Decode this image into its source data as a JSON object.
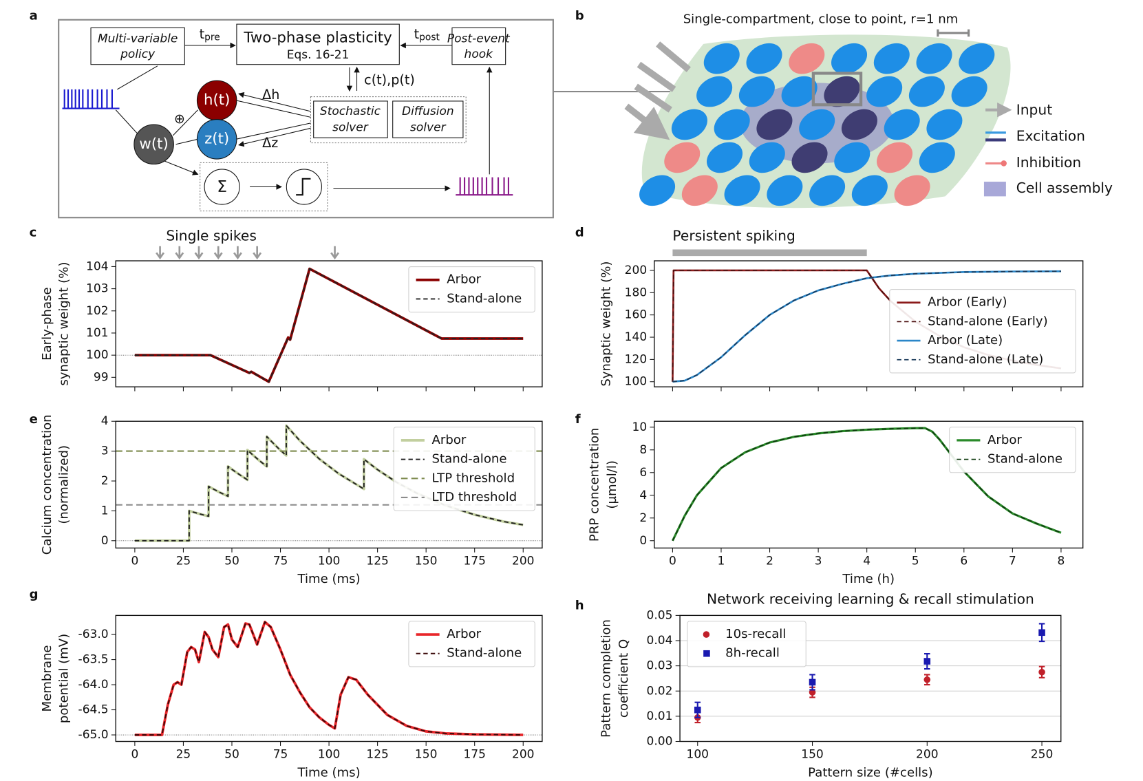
{
  "panel_labels": [
    "a",
    "b",
    "c",
    "d",
    "e",
    "f",
    "g",
    "h"
  ],
  "diagram_a": {
    "policy": [
      "Multi-variable",
      "policy"
    ],
    "t_pre": "t",
    "t_pre_sub": "pre",
    "plasticity": "Two-phase plasticity",
    "equations": "Eqs. 16-21",
    "t_post": "t",
    "t_post_sub": "post",
    "hook": [
      "Post-event",
      "hook"
    ],
    "h": "h(t)",
    "z": "z(t)",
    "w": "w(t)",
    "plus": "⊕",
    "delta_h": "Δh",
    "delta_z": "Δz",
    "cp": "c(t),p(t)",
    "stochastic": [
      "Stochastic",
      "solver"
    ],
    "diffusion": [
      "Diffusion",
      "solver"
    ],
    "sum": "Σ"
  },
  "diagram_b": {
    "title": "Single-compartment, close to point, r=1 nm",
    "legend": [
      "Input",
      "Excitation",
      "Inhibition",
      "Cell assembly"
    ]
  },
  "chart_data": [
    {
      "type": "line",
      "ylabel": [
        "Early-phase",
        "synaptic weight (%)"
      ],
      "annotation": "Single spikes",
      "spike_times": [
        13,
        23,
        33,
        43,
        53,
        63,
        103
      ],
      "xlim": [
        -9.8,
        209.8
      ],
      "ylim": [
        98.57,
        104.26
      ],
      "xticks": [
        0,
        25,
        50,
        75,
        100,
        125,
        150,
        175,
        200
      ],
      "xtick_labels": false,
      "yticks": [
        99,
        100,
        101,
        102,
        103,
        104
      ],
      "hline": 100,
      "legend": "upper right",
      "series": [
        {
          "name": "Arbor",
          "color": "#8b0000",
          "dash": "none",
          "width": 3.5,
          "x": [
            0,
            39,
            59,
            60,
            69,
            70,
            75,
            79,
            80,
            90,
            158,
            200
          ],
          "values": [
            100,
            100,
            99.2,
            99.25,
            98.8,
            99.0,
            100.0,
            100.8,
            100.7,
            103.9,
            100.75,
            100.75
          ]
        },
        {
          "name": "Stand-alone",
          "color": "#222222",
          "dash": "6,4",
          "width": 1.8,
          "x": [
            0,
            39,
            59,
            60,
            69,
            70,
            75,
            79,
            80,
            90,
            158,
            200
          ],
          "values": [
            100,
            100,
            99.2,
            99.25,
            98.8,
            99.0,
            100.0,
            100.8,
            100.7,
            103.9,
            100.75,
            100.75
          ]
        }
      ]
    },
    {
      "type": "line",
      "ylabel": [
        "Calcium concentration",
        "(normalized)"
      ],
      "xlabel": "Time (ms)",
      "xlim": [
        -9.8,
        209.8
      ],
      "ylim": [
        -0.245,
        4.0
      ],
      "xticks": [
        0,
        25,
        50,
        75,
        100,
        125,
        150,
        175,
        200
      ],
      "yticks": [
        0,
        1,
        2,
        3,
        4
      ],
      "hline": 0,
      "legend": "upper right",
      "series": [
        {
          "name": "Arbor",
          "color": "#c2cf9f",
          "dash": "none",
          "width": 3.5,
          "x": [
            0,
            28,
            28,
            30,
            34,
            38,
            38,
            40,
            44,
            48,
            48,
            50,
            54,
            58,
            58,
            60,
            64,
            68,
            68,
            70,
            74,
            78,
            78,
            85,
            95,
            105,
            118,
            118,
            125,
            135,
            145,
            160,
            175,
            190,
            200
          ],
          "values": [
            0,
            0,
            1.0,
            0.96,
            0.887,
            0.819,
            1.819,
            1.747,
            1.61,
            1.489,
            2.489,
            2.39,
            2.21,
            2.038,
            3.038,
            2.918,
            2.69,
            2.487,
            3.487,
            3.349,
            3.09,
            2.855,
            3.855,
            3.35,
            2.74,
            2.245,
            1.73,
            2.73,
            2.38,
            1.95,
            1.6,
            1.18,
            0.87,
            0.64,
            0.53
          ]
        },
        {
          "name": "Stand-alone",
          "color": "#222222",
          "dash": "6,4",
          "width": 1.8,
          "x": [
            0,
            28,
            28,
            30,
            34,
            38,
            38,
            40,
            44,
            48,
            48,
            50,
            54,
            58,
            58,
            60,
            64,
            68,
            68,
            70,
            74,
            78,
            78,
            85,
            95,
            105,
            118,
            118,
            125,
            135,
            145,
            160,
            175,
            190,
            200
          ],
          "values": [
            0,
            0,
            1.0,
            0.96,
            0.887,
            0.819,
            1.819,
            1.747,
            1.61,
            1.489,
            2.489,
            2.39,
            2.21,
            2.038,
            3.038,
            2.918,
            2.69,
            2.487,
            3.487,
            3.349,
            3.09,
            2.855,
            3.855,
            3.35,
            2.74,
            2.245,
            1.73,
            2.73,
            2.38,
            1.95,
            1.6,
            1.18,
            0.87,
            0.64,
            0.53
          ]
        },
        {
          "name": "LTP threshold",
          "color": "#7d8a4e",
          "dash": "9,5",
          "width": 2,
          "hline": 3
        },
        {
          "name": "LTD threshold",
          "color": "#8c8c8c",
          "dash": "9,5",
          "width": 2,
          "hline": 1.2
        }
      ]
    },
    {
      "type": "line",
      "ylabel": [
        "Membrane",
        "potential (mV)"
      ],
      "xlabel": "Time (ms)",
      "xlim": [
        -9.8,
        209.8
      ],
      "ylim": [
        -65.13,
        -62.62
      ],
      "xticks": [
        0,
        25,
        50,
        75,
        100,
        125,
        150,
        175,
        200
      ],
      "yticks": [
        {
          "value": -65,
          "label": "-65.0"
        },
        -64.5,
        {
          "value": -64,
          "label": "-64.0"
        },
        -63.5,
        {
          "value": -63,
          "label": "-63.0"
        }
      ],
      "hline": -65,
      "legend": "upper right",
      "series": [
        {
          "name": "Arbor",
          "color": "#e8262a",
          "dash": "none",
          "width": 3.5,
          "x": [
            0,
            14,
            17,
            20,
            22,
            24,
            27,
            29,
            31,
            33,
            36,
            38,
            40,
            43,
            46,
            48,
            50,
            53,
            57,
            59,
            61,
            63,
            67,
            70,
            75,
            80,
            85,
            90,
            95,
            100,
            103,
            106,
            110,
            114,
            120,
            130,
            140,
            150,
            160,
            175,
            200
          ],
          "values": [
            -65,
            -65,
            -64.4,
            -64.0,
            -63.95,
            -64.0,
            -63.35,
            -63.25,
            -63.3,
            -63.55,
            -62.95,
            -63.05,
            -63.3,
            -63.45,
            -62.85,
            -62.8,
            -63.1,
            -63.25,
            -62.78,
            -62.8,
            -63.0,
            -63.2,
            -62.75,
            -62.85,
            -63.3,
            -63.8,
            -64.15,
            -64.45,
            -64.65,
            -64.8,
            -64.87,
            -64.2,
            -63.85,
            -63.9,
            -64.2,
            -64.6,
            -64.82,
            -64.93,
            -64.97,
            -64.99,
            -65
          ]
        },
        {
          "name": "Stand-alone",
          "color": "#3a0808",
          "dash": "6,4",
          "width": 1.8,
          "x": [
            0,
            14,
            17,
            20,
            22,
            24,
            27,
            29,
            31,
            33,
            36,
            38,
            40,
            43,
            46,
            48,
            50,
            53,
            57,
            59,
            61,
            63,
            67,
            70,
            75,
            80,
            85,
            90,
            95,
            100,
            103,
            106,
            110,
            114,
            120,
            130,
            140,
            150,
            160,
            175,
            200
          ],
          "values": [
            -65,
            -65,
            -64.4,
            -64.0,
            -63.95,
            -64.0,
            -63.35,
            -63.25,
            -63.3,
            -63.55,
            -62.95,
            -63.05,
            -63.3,
            -63.45,
            -62.85,
            -62.8,
            -63.1,
            -63.25,
            -62.78,
            -62.8,
            -63.0,
            -63.2,
            -62.75,
            -62.85,
            -63.3,
            -63.8,
            -64.15,
            -64.45,
            -64.65,
            -64.8,
            -64.87,
            -64.2,
            -63.85,
            -63.9,
            -64.2,
            -64.6,
            -64.82,
            -64.93,
            -64.97,
            -64.99,
            -65
          ]
        }
      ]
    },
    {
      "type": "line",
      "ylabel": [
        "Synaptic weight (%)"
      ],
      "annotation": "Persistent spiking",
      "annotation_span": [
        0,
        4
      ],
      "xlim": [
        -0.377,
        8.45
      ],
      "ylim": [
        95.4,
        208.6
      ],
      "xticks": [
        0,
        1,
        2,
        3,
        4,
        5,
        6,
        7,
        8
      ],
      "xtick_labels": false,
      "yticks": [
        100,
        120,
        140,
        160,
        180,
        200
      ],
      "legend": "center right",
      "series": [
        {
          "name": "Arbor (Early)",
          "color": "#8b1a1a",
          "dash": "none",
          "width": 2.5,
          "x": [
            0,
            0.02,
            4,
            4.25,
            4.5,
            5,
            5.5,
            6,
            6.5,
            7,
            7.5,
            8
          ],
          "values": [
            100,
            200,
            200,
            184,
            172,
            154,
            141,
            131,
            124,
            119,
            115,
            112
          ]
        },
        {
          "name": "Stand-alone (Early)",
          "color": "#4a0f0f",
          "dash": "6,4",
          "width": 1.6,
          "x": [
            0,
            0.02,
            4,
            4.25,
            4.5,
            5,
            5.5,
            6,
            6.5,
            7,
            7.5,
            8
          ],
          "values": [
            100,
            200,
            200,
            184,
            172,
            154,
            141,
            131,
            124,
            119,
            115,
            112
          ]
        },
        {
          "name": "Arbor (Late)",
          "color": "#2a86c8",
          "dash": "none",
          "width": 2.5,
          "x": [
            0,
            0.25,
            0.5,
            1,
            1.5,
            2,
            2.5,
            3,
            3.5,
            4,
            4.5,
            5,
            6,
            7,
            8
          ],
          "values": [
            100,
            101,
            106,
            122,
            142,
            160,
            173,
            182,
            188,
            193,
            195.5,
            197,
            198.5,
            199,
            199.2
          ]
        },
        {
          "name": "Stand-alone (Late)",
          "color": "#1a3a5a",
          "dash": "6,4",
          "width": 1.6,
          "x": [
            0,
            0.25,
            0.5,
            1,
            1.5,
            2,
            2.5,
            3,
            3.5,
            4,
            4.5,
            5,
            6,
            7,
            8
          ],
          "values": [
            100,
            101,
            106,
            122,
            142,
            160,
            173,
            182,
            188,
            193,
            195.5,
            197,
            198.5,
            199,
            199.2
          ]
        }
      ]
    },
    {
      "type": "line",
      "ylabel": [
        "PRP concentration",
        "(µmol/l)"
      ],
      "xlabel": "Time (h)",
      "xlim": [
        -0.377,
        8.45
      ],
      "ylim": [
        -0.645,
        10.52
      ],
      "xticks": [
        0,
        1,
        2,
        3,
        4,
        5,
        6,
        7,
        8
      ],
      "yticks": [
        0,
        2,
        4,
        6,
        8,
        10
      ],
      "legend": "upper right",
      "series": [
        {
          "name": "Arbor",
          "color": "#2a8a2a",
          "dash": "none",
          "width": 3,
          "x": [
            0,
            0.25,
            0.5,
            1,
            1.5,
            2,
            2.5,
            3,
            3.5,
            4,
            4.5,
            5,
            5.2,
            5.35,
            5.5,
            6,
            6.5,
            7,
            7.5,
            8
          ],
          "values": [
            0,
            2.2,
            4,
            6.4,
            7.8,
            8.65,
            9.15,
            9.45,
            9.65,
            9.78,
            9.86,
            9.91,
            9.92,
            9.6,
            8.9,
            6.1,
            3.9,
            2.4,
            1.5,
            0.7
          ]
        },
        {
          "name": "Stand-alone",
          "color": "#0f3a0f",
          "dash": "6,4",
          "width": 1.6,
          "x": [
            0,
            0.25,
            0.5,
            1,
            1.5,
            2,
            2.5,
            3,
            3.5,
            4,
            4.5,
            5,
            5.2,
            5.35,
            5.5,
            6,
            6.5,
            7,
            7.5,
            8
          ],
          "values": [
            0,
            2.2,
            4,
            6.4,
            7.8,
            8.65,
            9.15,
            9.45,
            9.65,
            9.78,
            9.86,
            9.91,
            9.92,
            9.6,
            8.9,
            6.1,
            3.9,
            2.4,
            1.5,
            0.7
          ]
        }
      ]
    },
    {
      "type": "scatter",
      "title": "Network receiving learning & recall stimulation",
      "ylabel": [
        "Pattern completion",
        "coefficient Q"
      ],
      "xlabel": "Pattern size (#cells)",
      "xlim": [
        92.3,
        258.3
      ],
      "ylim": [
        0,
        0.05
      ],
      "xticks": [
        100,
        150,
        200,
        250
      ],
      "yticks": [
        {
          "value": 0,
          "label": "0.00"
        },
        0.01,
        0.02,
        0.03,
        0.04,
        0.05
      ],
      "grid": true,
      "legend": "upper left",
      "series": [
        {
          "name": "10s-recall",
          "color": "#c0202a",
          "marker": "circle",
          "x": [
            100,
            150,
            200,
            250
          ],
          "values": [
            0.0095,
            0.0195,
            0.0245,
            0.0275
          ],
          "errors": [
            0.002,
            0.002,
            0.002,
            0.0022
          ]
        },
        {
          "name": "8h-recall",
          "color": "#1a1ab0",
          "marker": "square",
          "x": [
            100,
            150,
            200,
            250
          ],
          "values": [
            0.0125,
            0.0235,
            0.0318,
            0.0432
          ],
          "errors": [
            0.003,
            0.003,
            0.003,
            0.0035
          ]
        }
      ]
    }
  ]
}
